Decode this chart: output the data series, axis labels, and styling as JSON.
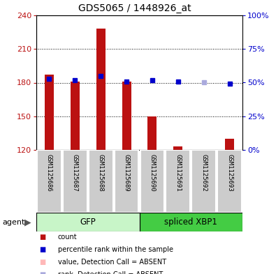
{
  "title": "GDS5065 / 1448926_at",
  "samples": [
    "GSM1125686",
    "GSM1125687",
    "GSM1125688",
    "GSM1125689",
    "GSM1125690",
    "GSM1125691",
    "GSM1125692",
    "GSM1125693"
  ],
  "count_values": [
    187,
    181,
    228,
    181,
    150,
    123,
    120,
    130
  ],
  "count_absent": [
    false,
    false,
    false,
    false,
    false,
    false,
    true,
    false
  ],
  "rank_values": [
    53,
    52,
    55,
    51,
    52,
    51,
    50,
    49
  ],
  "rank_absent": [
    false,
    false,
    false,
    false,
    false,
    false,
    true,
    false
  ],
  "groups": [
    {
      "label": "GFP",
      "samples": [
        0,
        1,
        2,
        3
      ],
      "color": "#c8f5c8"
    },
    {
      "label": "spliced XBP1",
      "samples": [
        4,
        5,
        6,
        7
      ],
      "color": "#44cc44"
    }
  ],
  "ylim_left": [
    120,
    240
  ],
  "ylim_right": [
    0,
    100
  ],
  "yticks_left": [
    120,
    150,
    180,
    210,
    240
  ],
  "yticks_right": [
    0,
    25,
    50,
    75,
    100
  ],
  "bar_color_present": "#bb1111",
  "bar_color_absent": "#ffb8b8",
  "rank_color_present": "#0000cc",
  "rank_color_absent": "#aaaadd",
  "bar_width": 0.35,
  "background_sample_row": "#cccccc",
  "figsize": [
    3.85,
    3.93
  ],
  "dpi": 100
}
